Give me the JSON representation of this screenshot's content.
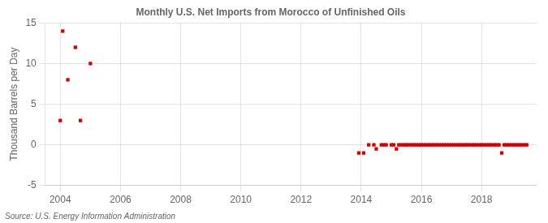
{
  "chart_data": {
    "type": "scatter",
    "title": "Monthly U.S. Net Imports from Morocco of Unfinished Oils",
    "ylabel": "Thousand Barrels per Day",
    "annotation": "Source: U.S. Energy Information Administration",
    "color": "#cc0000",
    "marker": "square",
    "grid": true,
    "xlim": [
      2003.5,
      2019.83
    ],
    "xticks": [
      2004,
      2006,
      2008,
      2010,
      2012,
      2014,
      2016,
      2018
    ],
    "ylim": [
      -5,
      15
    ],
    "yticks": [
      -5,
      0,
      5,
      10,
      15
    ],
    "x": [
      2004.0,
      2004.08,
      2004.25,
      2004.5,
      2004.67,
      2005.0,
      2013.92,
      2014.08,
      2014.25,
      2014.42,
      2014.5,
      2014.67,
      2014.75,
      2014.83,
      2015.0,
      2015.08,
      2015.17,
      2015.25,
      2015.33,
      2015.42,
      2015.5,
      2015.58,
      2015.67,
      2015.75,
      2015.83,
      2015.92,
      2016.0,
      2016.08,
      2016.17,
      2016.25,
      2016.33,
      2016.42,
      2016.5,
      2016.58,
      2016.67,
      2016.75,
      2016.83,
      2016.92,
      2017.0,
      2017.08,
      2017.17,
      2017.25,
      2017.33,
      2017.42,
      2017.5,
      2017.58,
      2017.67,
      2017.75,
      2017.83,
      2017.92,
      2018.0,
      2018.08,
      2018.17,
      2018.25,
      2018.33,
      2018.42,
      2018.5,
      2018.58,
      2018.67,
      2018.75,
      2018.83,
      2018.92,
      2019.0,
      2019.08,
      2019.17,
      2019.25,
      2019.33,
      2019.42,
      2019.5
    ],
    "values": [
      3.0,
      14.0,
      8.0,
      12.0,
      3.0,
      10.0,
      -1.0,
      -1.0,
      0.0,
      0.0,
      -0.5,
      0.0,
      0.0,
      0.0,
      0.0,
      0.0,
      -0.5,
      0.0,
      0.0,
      0.0,
      0.0,
      0.0,
      0.0,
      0.0,
      0.0,
      0.0,
      0.0,
      0.0,
      0.0,
      0.0,
      0.0,
      0.0,
      0.0,
      0.0,
      0.0,
      0.0,
      0.0,
      0.0,
      0.0,
      0.0,
      0.0,
      0.0,
      0.0,
      0.0,
      0.0,
      0.0,
      0.0,
      0.0,
      0.0,
      0.0,
      0.0,
      0.0,
      0.0,
      0.0,
      0.0,
      0.0,
      0.0,
      0.0,
      -1.0,
      0.0,
      0.0,
      0.0,
      0.0,
      0.0,
      0.0,
      0.0,
      0.0,
      0.0,
      0.0
    ]
  }
}
